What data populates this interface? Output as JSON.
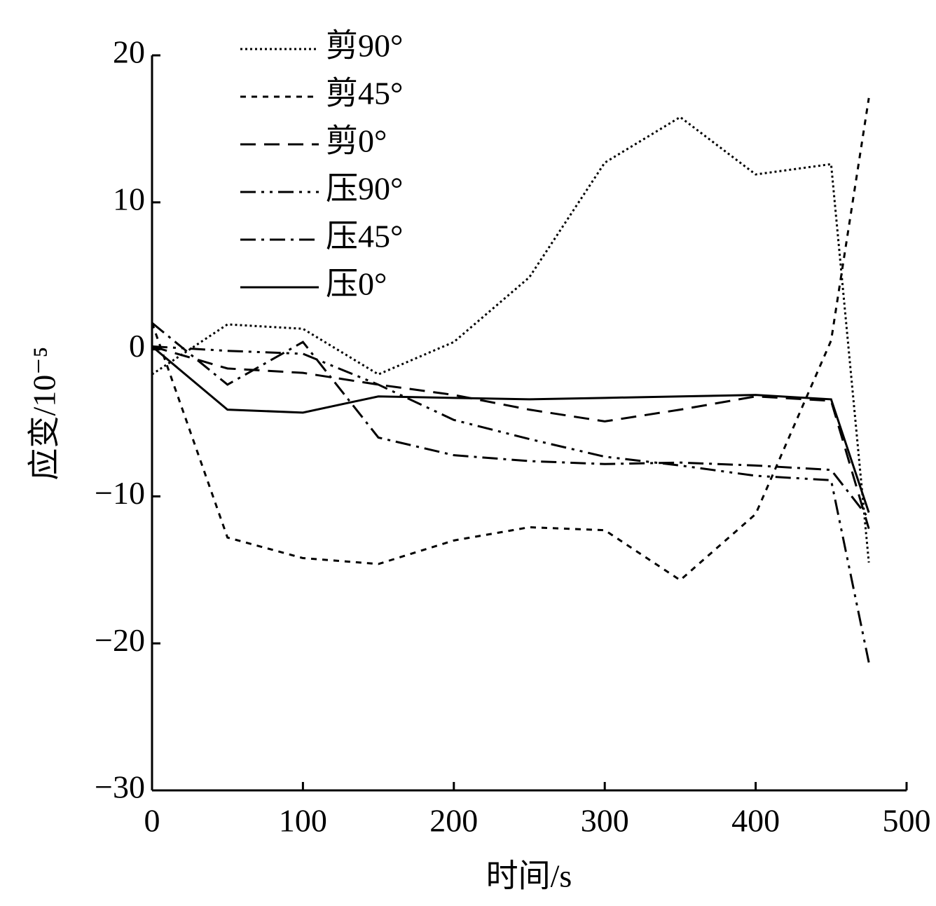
{
  "chart_data": {
    "type": "line",
    "x_label": "时间/s",
    "y_label": "应变/10⁻⁵",
    "x": [
      0,
      50,
      100,
      150,
      200,
      250,
      300,
      350,
      400,
      450,
      475
    ],
    "series": [
      {
        "name": "剪90°",
        "color": "#000000",
        "linestyle": "dotted",
        "values": [
          -1.7,
          1.7,
          1.4,
          -1.7,
          0.5,
          4.9,
          12.7,
          15.8,
          11.9,
          12.6,
          -14.5
        ]
      },
      {
        "name": "剪45°",
        "color": "#000000",
        "linestyle": "short-dashed",
        "values": [
          1.8,
          -12.8,
          -14.2,
          -14.6,
          -13.0,
          -12.1,
          -12.3,
          -15.7,
          -11.2,
          0.6,
          17.1
        ]
      },
      {
        "name": "剪0°",
        "color": "#000000",
        "linestyle": "dashed",
        "values": [
          0.2,
          -1.3,
          -1.6,
          -2.4,
          -3.1,
          -4.1,
          -4.9,
          -4.1,
          -3.2,
          -3.5,
          -12.2
        ]
      },
      {
        "name": "压90°",
        "color": "#000000",
        "linestyle": "dash-dot-dot",
        "values": [
          0.2,
          -0.1,
          -0.3,
          -2.4,
          -4.8,
          -6.1,
          -7.3,
          -7.9,
          -8.6,
          -8.9,
          -21.3
        ]
      },
      {
        "name": "压45°",
        "color": "#000000",
        "linestyle": "dash-dot",
        "values": [
          1.8,
          -2.4,
          0.5,
          -6.0,
          -7.2,
          -7.6,
          -7.8,
          -7.7,
          -7.9,
          -8.2,
          -11.5
        ]
      },
      {
        "name": "压0°",
        "color": "#000000",
        "linestyle": "solid",
        "values": [
          0.2,
          -4.1,
          -4.3,
          -3.2,
          -3.3,
          -3.4,
          -3.3,
          -3.2,
          -3.1,
          -3.4,
          -11.1
        ]
      }
    ],
    "xlim": [
      0,
      500
    ],
    "xticks": [
      0,
      100,
      200,
      300,
      400,
      500
    ],
    "ylim": [
      -30,
      20
    ],
    "yticks": [
      {
        "value": -30,
        "label": "−30"
      },
      {
        "value": -20,
        "label": "−20"
      },
      {
        "value": -10,
        "label": "−10"
      },
      0,
      10,
      20
    ],
    "grid": false,
    "legend": "upper-left"
  }
}
